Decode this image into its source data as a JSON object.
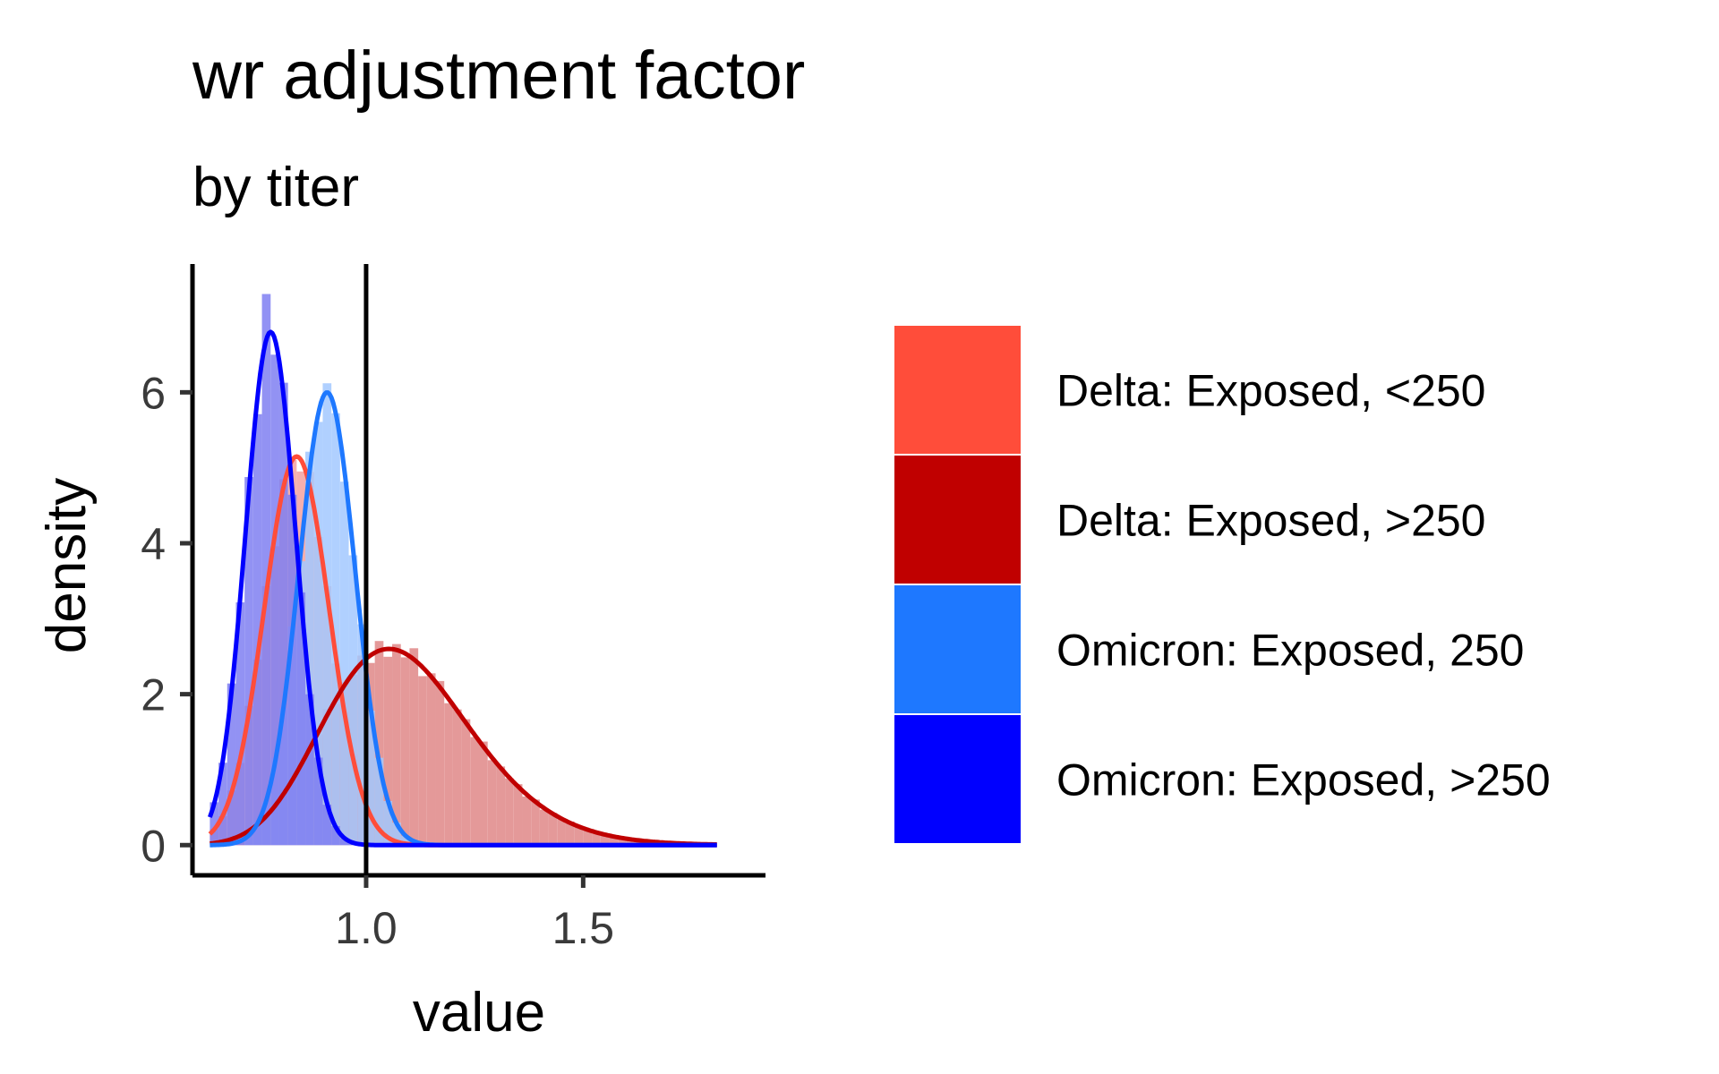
{
  "chart_data": {
    "type": "area",
    "title": "wr adjustment factor",
    "subtitle": "by titer",
    "xlabel": "value",
    "ylabel": "density",
    "xlim": [
      0.6,
      1.92
    ],
    "ylim": [
      -0.4,
      7.7
    ],
    "x_ticks": [
      1.0,
      1.5
    ],
    "x_tick_labels": [
      "1.0",
      "1.5"
    ],
    "y_ticks": [
      0,
      2,
      4,
      6
    ],
    "y_tick_labels": [
      "0",
      "2",
      "4",
      "6"
    ],
    "reference_line_x": 1.0,
    "grid": false,
    "legend_position": "right",
    "hist_bin_width": 0.02,
    "series": [
      {
        "name": "Delta: Exposed, <250",
        "color": "#FF4D3A",
        "hist_color": "#F4A2A0",
        "density_peak_x": 0.84,
        "density_peak_y": 5.15,
        "hist_range": [
          0.64,
          1.12
        ]
      },
      {
        "name": "Delta: Exposed, >250",
        "color": "#C00000",
        "hist_color": "#E08888",
        "density_peak_x": 1.02,
        "density_peak_y": 2.6,
        "hist_range": [
          0.66,
          1.8
        ]
      },
      {
        "name": "Omicron: Exposed, 250",
        "color": "#1E78FF",
        "hist_color": "#A3C8FF",
        "density_peak_x": 0.91,
        "density_peak_y": 6.0,
        "hist_range": [
          0.72,
          1.1
        ]
      },
      {
        "name": "Omicron: Exposed, >250",
        "color": "#0000FF",
        "hist_color": "#7F7FF2",
        "density_peak_x": 0.78,
        "density_peak_y": 6.8,
        "hist_range": [
          0.64,
          1.0
        ]
      }
    ]
  }
}
